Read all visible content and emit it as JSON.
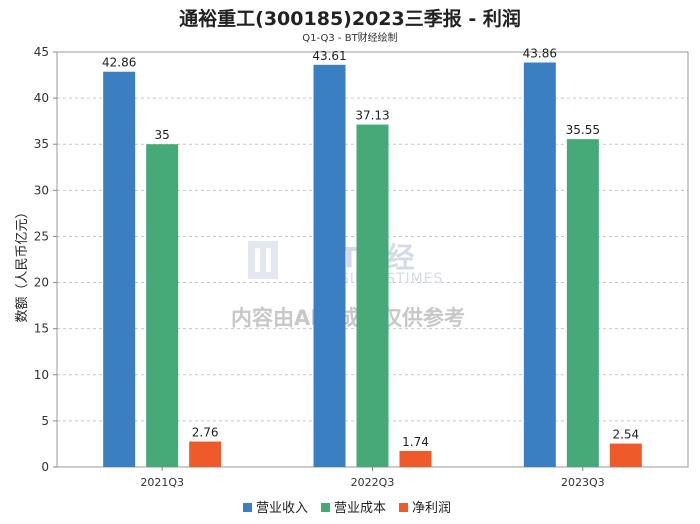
{
  "chart_data": {
    "type": "bar",
    "title": "通裕重工(300185)2023三季报 - 利润",
    "subtitle": "Q1-Q3 - BT财经绘制",
    "ylabel": "数额（人民币亿元）",
    "xlabel": "",
    "ylim": [
      0,
      45
    ],
    "yticks": [
      0,
      5,
      10,
      15,
      20,
      25,
      30,
      35,
      40,
      45
    ],
    "categories": [
      "2021Q3",
      "2022Q3",
      "2023Q3"
    ],
    "series": [
      {
        "name": "营业收入",
        "color": "#3a7fc1",
        "values": [
          42.86,
          43.61,
          43.86
        ],
        "labels": [
          "42.86",
          "43.61",
          "43.86"
        ]
      },
      {
        "name": "营业成本",
        "color": "#46aa78",
        "values": [
          35,
          37.13,
          35.55
        ],
        "labels": [
          "35",
          "37.13",
          "35.55"
        ]
      },
      {
        "name": "净利润",
        "color": "#ee5a2a",
        "values": [
          2.76,
          1.74,
          2.54
        ],
        "labels": [
          "2.76",
          "1.74",
          "2.54"
        ]
      }
    ],
    "legend_position": "bottom-center",
    "grid": true
  },
  "watermark": {
    "brand": "BT财经",
    "brand_sub": "BUSINESSTIMES",
    "notice": "内容由AI生成，仅供参考"
  }
}
